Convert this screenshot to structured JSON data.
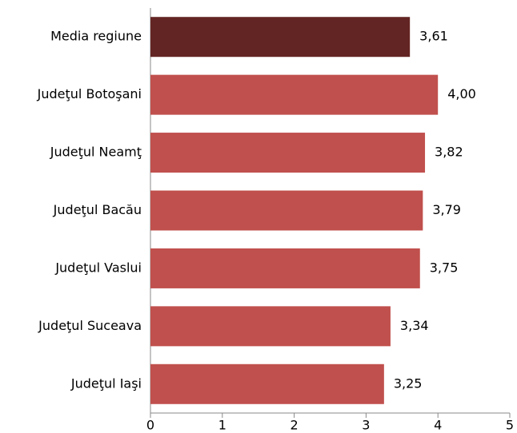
{
  "chart_data": {
    "type": "bar",
    "orientation": "horizontal",
    "categories": [
      "Media regiune",
      "Judeţul Botoşani",
      "Judeţul Neamţ",
      "Judeţul Bacău",
      "Judeţul Vaslui",
      "Judeţul Suceava",
      "Judeţul Iaşi"
    ],
    "values": [
      3.61,
      4.0,
      3.82,
      3.79,
      3.75,
      3.34,
      3.25
    ],
    "value_labels": [
      "3,61",
      "4,00",
      "3,82",
      "3,79",
      "3,75",
      "3,34",
      "3,25"
    ],
    "colors": [
      "#632523",
      "#c0504d",
      "#c0504d",
      "#c0504d",
      "#c0504d",
      "#c0504d",
      "#c0504d"
    ],
    "xlim": [
      0,
      5
    ],
    "xticks": [
      0,
      1,
      2,
      3,
      4,
      5
    ],
    "grid": false
  }
}
